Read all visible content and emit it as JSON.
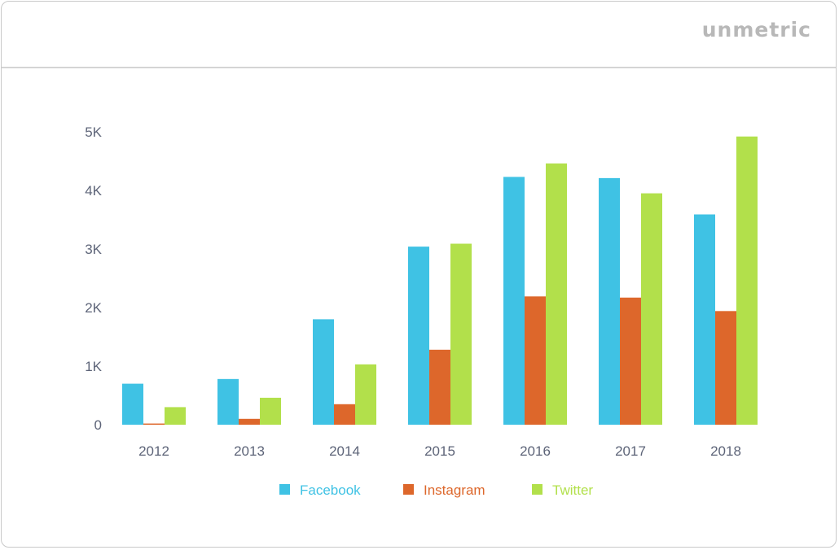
{
  "brand": {
    "logo_text": "unmetric"
  },
  "colors": {
    "facebook": "#3fc2e4",
    "instagram": "#dd672b",
    "twitter": "#b2e04b",
    "axis_text": "#5d6478",
    "logo": "#b8b8b8"
  },
  "chart_data": {
    "type": "bar",
    "title": "",
    "xlabel": "",
    "ylabel": "",
    "categories": [
      "2012",
      "2013",
      "2014",
      "2015",
      "2016",
      "2017",
      "2018"
    ],
    "ylim": [
      0,
      5000
    ],
    "yticks": [
      {
        "value": 0,
        "label": "0"
      },
      {
        "value": 1000,
        "label": "1K"
      },
      {
        "value": 2000,
        "label": "2K"
      },
      {
        "value": 3000,
        "label": "3K"
      },
      {
        "value": 4000,
        "label": "4K"
      },
      {
        "value": 5000,
        "label": "5K"
      }
    ],
    "grid": false,
    "legend_position": "bottom",
    "series": [
      {
        "name": "Facebook",
        "color": "#3fc2e4",
        "values": [
          700,
          780,
          1800,
          3040,
          4230,
          4210,
          3590
        ]
      },
      {
        "name": "Instagram",
        "color": "#dd672b",
        "values": [
          20,
          100,
          350,
          1280,
          2190,
          2170,
          1940
        ]
      },
      {
        "name": "Twitter",
        "color": "#b2e04b",
        "values": [
          300,
          460,
          1030,
          3090,
          4460,
          3950,
          4920
        ]
      }
    ]
  }
}
